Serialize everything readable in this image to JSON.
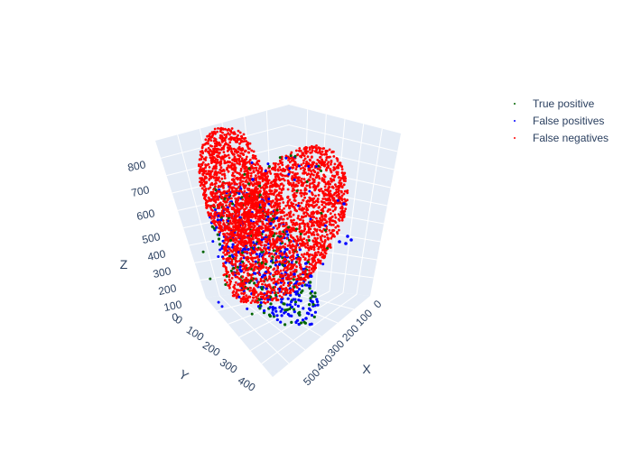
{
  "chart_data": {
    "type": "scatter3d",
    "title": "",
    "axes": {
      "x": {
        "label": "X",
        "ticks": [
          "0",
          "100",
          "200",
          "300",
          "400",
          "500"
        ],
        "range": [
          0,
          560
        ]
      },
      "y": {
        "label": "Y",
        "ticks": [
          "0",
          "100",
          "200",
          "300",
          "400"
        ],
        "range": [
          0,
          460
        ]
      },
      "z": {
        "label": "Z",
        "ticks": [
          "0",
          "100",
          "200",
          "300",
          "400",
          "500",
          "600",
          "700",
          "800"
        ],
        "range": [
          0,
          860
        ]
      }
    },
    "grid": true,
    "legend_position": "top-right",
    "series": [
      {
        "name": "True positive",
        "color": "#006400"
      },
      {
        "name": "False positives",
        "color": "#0000ff"
      },
      {
        "name": "False negatives",
        "color": "#ff0000"
      }
    ]
  }
}
